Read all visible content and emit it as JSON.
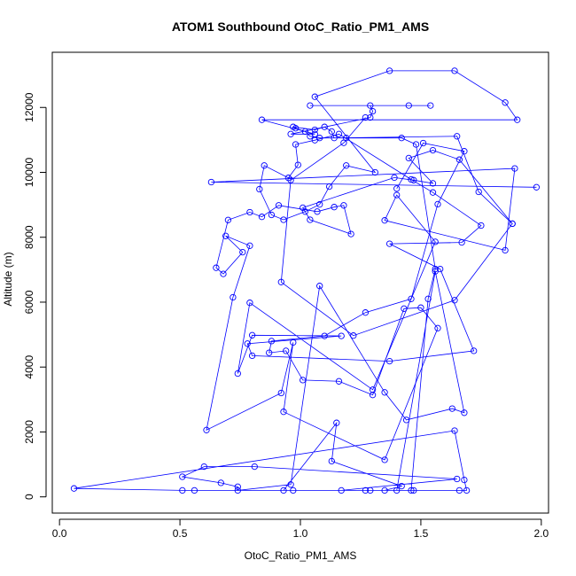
{
  "chart_data": {
    "type": "line",
    "title": "ATOM1 Southbound OtoC_Ratio_PM1_AMS",
    "xlabel": "OtoC_Ratio_PM1_AMS",
    "ylabel": "Altitude (m)",
    "xlim": [
      -0.03,
      2.03
    ],
    "ylim": [
      -500,
      13700
    ],
    "xticks": [
      0.0,
      0.5,
      1.0,
      1.5,
      2.0
    ],
    "xtick_labels": [
      "0.0",
      "0.5",
      "1.0",
      "1.5",
      "2.0"
    ],
    "yticks": [
      0,
      2000,
      4000,
      6000,
      8000,
      10000,
      12000
    ],
    "ytick_labels": [
      "0",
      "2000",
      "4000",
      "6000",
      "8000",
      "10000",
      "12000"
    ],
    "grid": false,
    "legend": "none",
    "marker": "open-circle",
    "series_color": "#0000ff",
    "series": [
      {
        "points": [
          [
            1.27,
            200
          ],
          [
            1.47,
            200
          ],
          [
            1.66,
            200
          ],
          [
            1.29,
            200
          ],
          [
            1.35,
            200
          ],
          [
            1.42,
            330
          ],
          [
            1.13,
            1100
          ],
          [
            1.15,
            2280
          ],
          [
            0.93,
            200
          ],
          [
            0.97,
            200
          ],
          [
            1.69,
            200
          ],
          [
            1.68,
            520
          ],
          [
            1.64,
            2040
          ],
          [
            0.06,
            260
          ],
          [
            0.51,
            200
          ],
          [
            0.56,
            200
          ],
          [
            1.17,
            200
          ],
          [
            1.65,
            550
          ],
          [
            0.81,
            930
          ],
          [
            0.6,
            930
          ],
          [
            0.51,
            620
          ],
          [
            0.67,
            430
          ],
          [
            0.74,
            310
          ],
          [
            0.74,
            200
          ],
          [
            0.96,
            380
          ],
          [
            1.08,
            6500
          ],
          [
            1.35,
            3220
          ],
          [
            1.44,
            2370
          ],
          [
            1.63,
            2720
          ],
          [
            1.68,
            2590
          ],
          [
            1.56,
            6950
          ],
          [
            1.4,
            200
          ],
          [
            1.46,
            200
          ],
          [
            1.53,
            6100
          ],
          [
            1.56,
            7020
          ],
          [
            1.48,
            10860
          ],
          [
            1.42,
            11060
          ],
          [
            1.19,
            11060
          ],
          [
            1.08,
            11060
          ],
          [
            1.04,
            11110
          ],
          [
            1.02,
            11260
          ],
          [
            0.98,
            11360
          ],
          [
            0.97,
            11400
          ],
          [
            1.06,
            11310
          ],
          [
            1.1,
            11400
          ],
          [
            1.13,
            11260
          ],
          [
            1.14,
            11060
          ],
          [
            1.65,
            11110
          ],
          [
            1.74,
            9400
          ],
          [
            1.88,
            8420
          ]
        ]
      },
      {
        "points": [
          [
            1.54,
            12060
          ],
          [
            1.04,
            12060
          ],
          [
            1.45,
            12060
          ],
          [
            1.29,
            12060
          ],
          [
            1.3,
            11880
          ],
          [
            1.29,
            11690
          ],
          [
            0.96,
            11180
          ],
          [
            1.06,
            11180
          ],
          [
            0.84,
            11620
          ],
          [
            1.9,
            11620
          ],
          [
            1.85,
            12150
          ],
          [
            1.64,
            13130
          ],
          [
            1.37,
            13130
          ],
          [
            1.06,
            12330
          ],
          [
            1.31,
            10000
          ],
          [
            1.19,
            10210
          ],
          [
            1.12,
            9560
          ],
          [
            1.08,
            9010
          ],
          [
            1.02,
            8790
          ],
          [
            0.93,
            8540
          ],
          [
            0.88,
            8690
          ],
          [
            0.83,
            9480
          ],
          [
            0.85,
            10210
          ],
          [
            0.95,
            9830
          ],
          [
            0.99,
            10230
          ],
          [
            0.98,
            10860
          ],
          [
            1.06,
            10990
          ],
          [
            1.16,
            11180
          ],
          [
            1.46,
            9780
          ],
          [
            1.55,
            9380
          ],
          [
            1.75,
            8360
          ],
          [
            1.67,
            7840
          ],
          [
            1.37,
            7800
          ],
          [
            1.58,
            7020
          ],
          [
            1.72,
            4500
          ],
          [
            1.37,
            4180
          ],
          [
            0.8,
            4350
          ],
          [
            0.78,
            4720
          ],
          [
            1.17,
            4960
          ],
          [
            0.8,
            4980
          ],
          [
            0.74,
            3800
          ],
          [
            0.79,
            5980
          ],
          [
            1.3,
            3300
          ],
          [
            1.56,
            7860
          ],
          [
            1.4,
            9300
          ],
          [
            1.35,
            8520
          ],
          [
            1.85,
            7600
          ],
          [
            1.89,
            10120
          ],
          [
            0.63,
            9700
          ],
          [
            1.98,
            9540
          ]
        ]
      },
      {
        "points": [
          [
            1.4,
            9500
          ],
          [
            1.51,
            10900
          ],
          [
            1.68,
            10650
          ],
          [
            1.57,
            9020
          ],
          [
            1.46,
            6100
          ],
          [
            1.27,
            5680
          ],
          [
            1.1,
            4960
          ],
          [
            0.88,
            4800
          ],
          [
            0.87,
            4440
          ],
          [
            0.94,
            4500
          ],
          [
            1.01,
            3600
          ],
          [
            1.16,
            3560
          ],
          [
            1.3,
            3140
          ],
          [
            1.43,
            5800
          ],
          [
            1.5,
            5830
          ],
          [
            1.57,
            5200
          ],
          [
            1.35,
            1140
          ],
          [
            0.93,
            2620
          ],
          [
            0.97,
            4760
          ],
          [
            0.92,
            3200
          ],
          [
            0.61,
            2060
          ],
          [
            0.72,
            6150
          ],
          [
            0.79,
            7740
          ],
          [
            0.69,
            8040
          ],
          [
            0.76,
            7540
          ],
          [
            0.68,
            6870
          ],
          [
            0.65,
            7060
          ],
          [
            0.7,
            8530
          ],
          [
            0.79,
            8770
          ],
          [
            0.84,
            8630
          ],
          [
            0.91,
            8980
          ],
          [
            1.07,
            8790
          ],
          [
            1.14,
            8930
          ],
          [
            1.18,
            8980
          ],
          [
            1.21,
            8100
          ],
          [
            1.04,
            8540
          ],
          [
            1.01,
            8910
          ],
          [
            1.39,
            9840
          ],
          [
            1.47,
            9760
          ],
          [
            1.55,
            9660
          ],
          [
            1.45,
            10440
          ],
          [
            1.55,
            10680
          ],
          [
            1.66,
            10390
          ],
          [
            1.88,
            8420
          ],
          [
            1.64,
            6060
          ],
          [
            1.22,
            4970
          ],
          [
            0.92,
            6620
          ],
          [
            0.96,
            9760
          ],
          [
            1.18,
            10910
          ],
          [
            1.27,
            11690
          ]
        ]
      }
    ]
  }
}
